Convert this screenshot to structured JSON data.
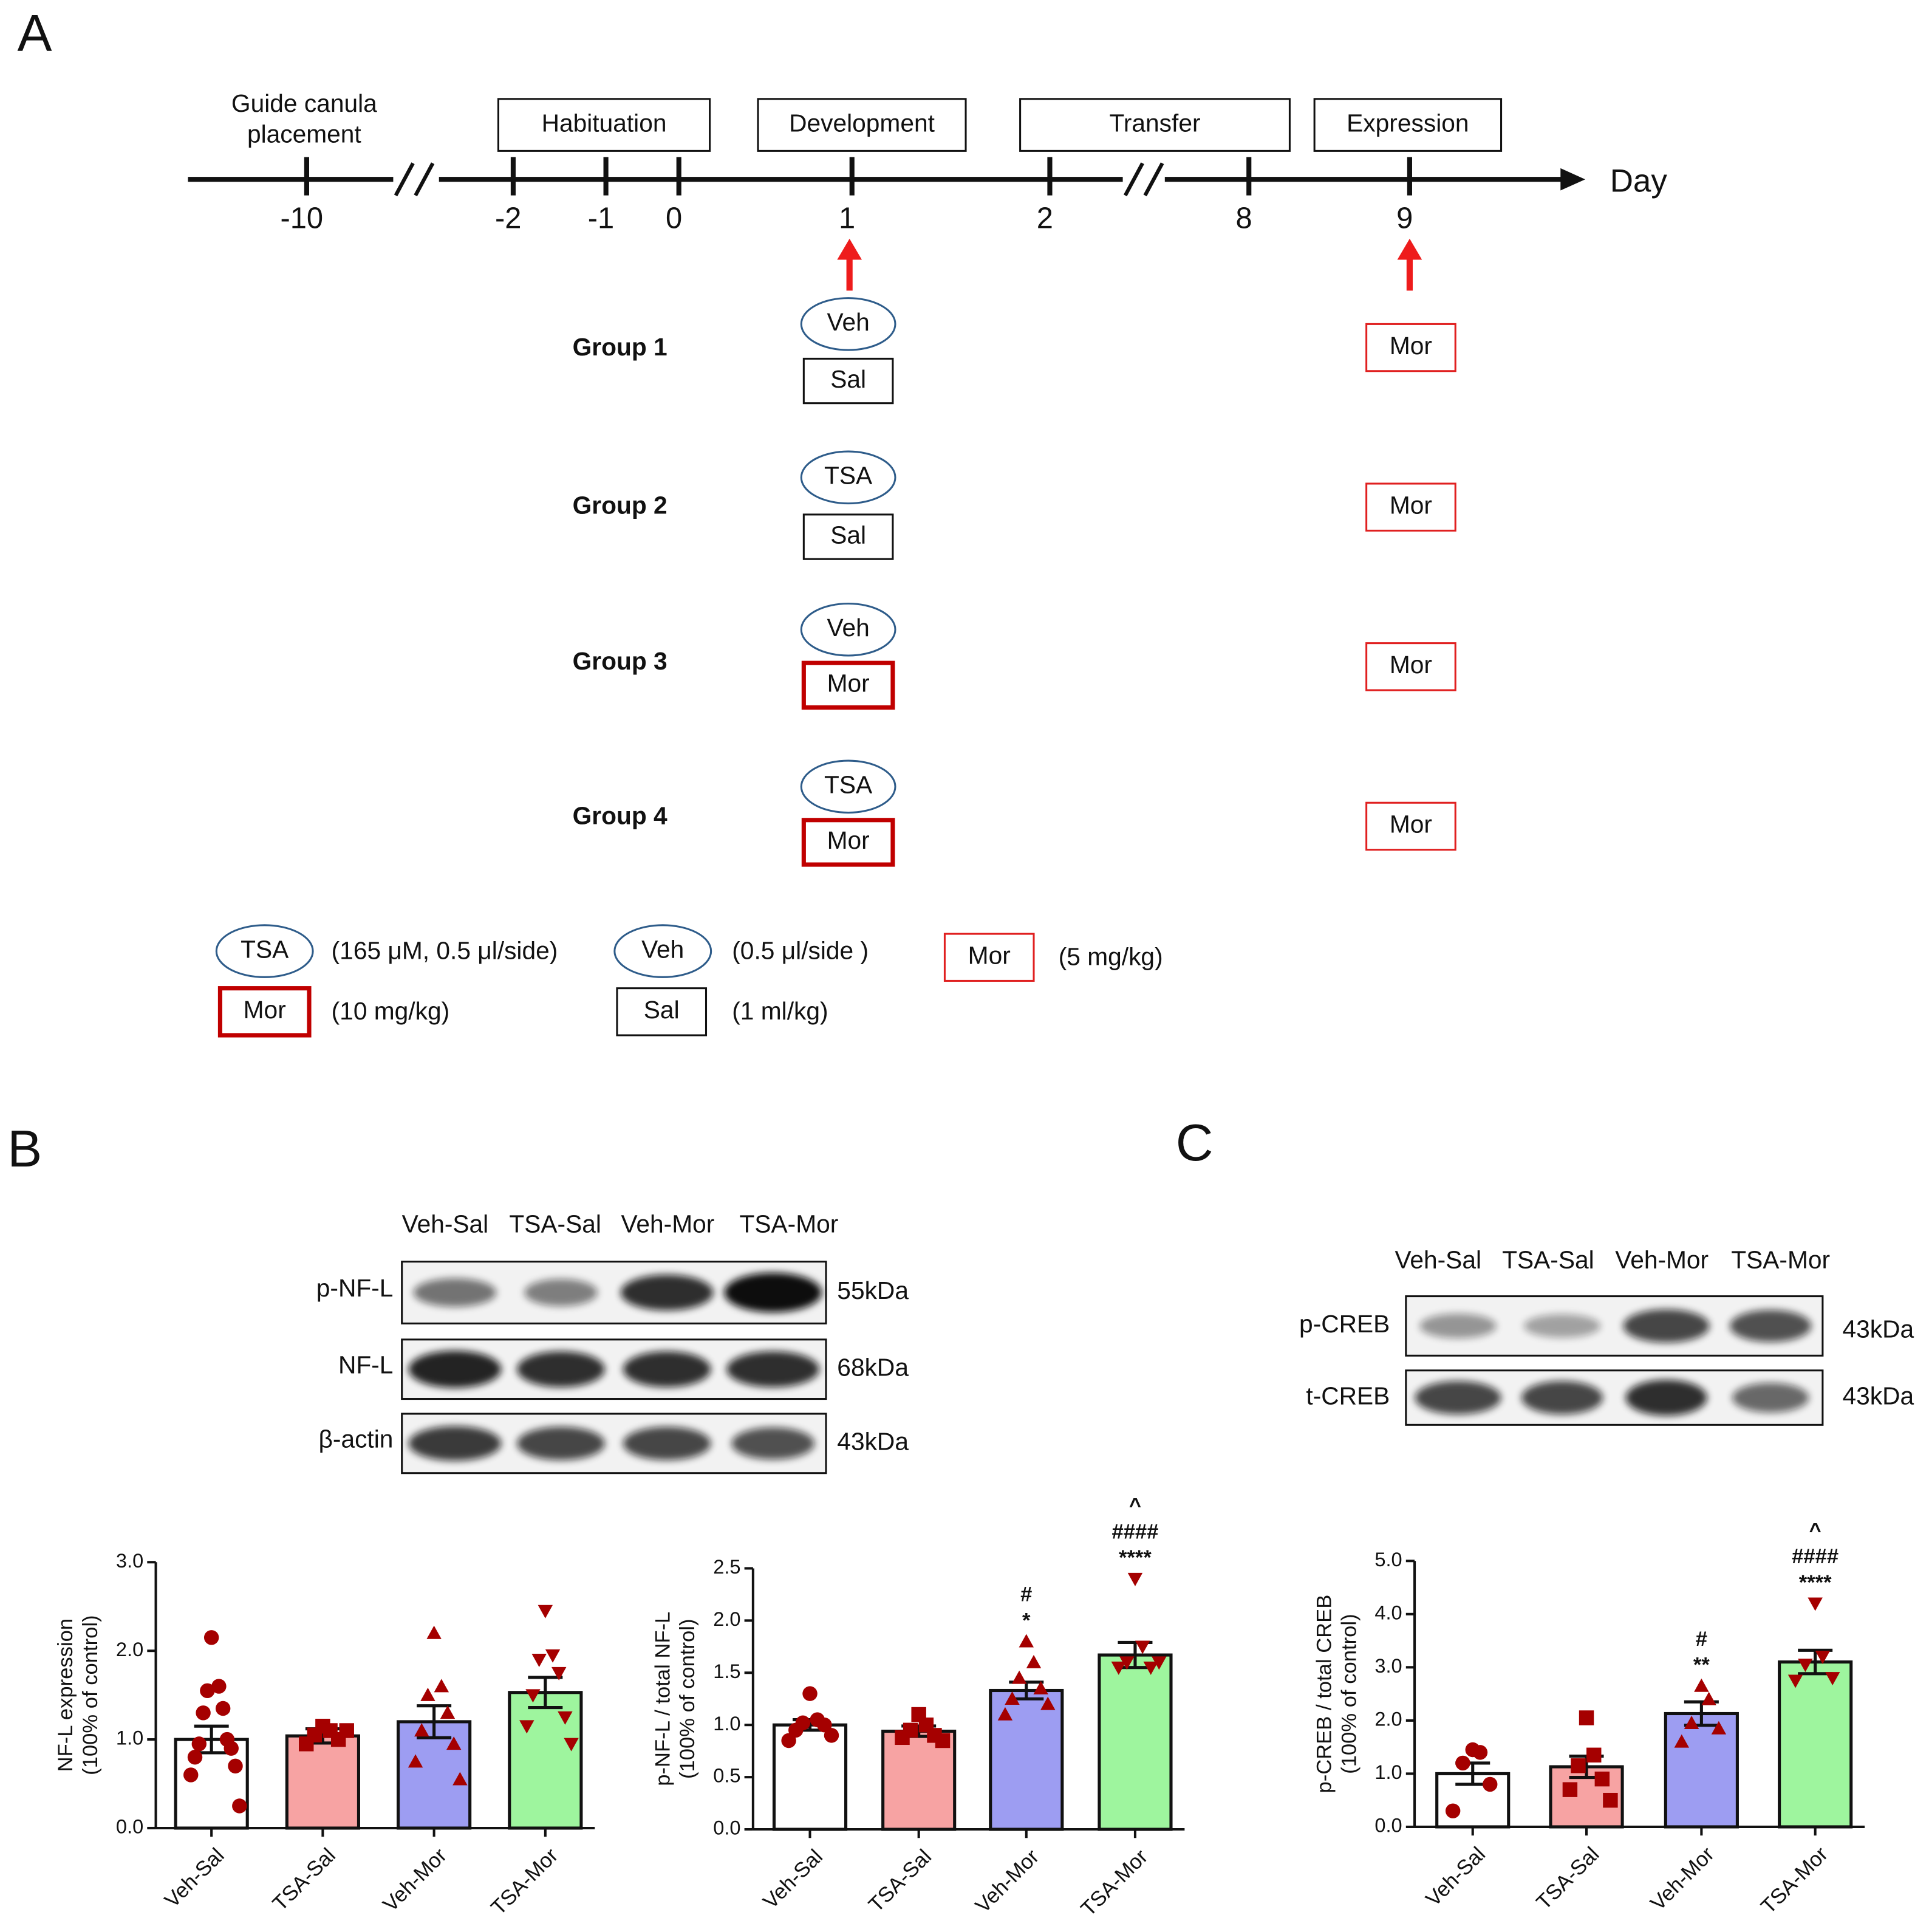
{
  "panels": [
    "A",
    "B",
    "C"
  ],
  "timeline": {
    "guide": [
      "Guide canula",
      "placement"
    ],
    "phases": [
      "Habituation",
      "Development",
      "Transfer",
      "Expression"
    ],
    "days": [
      "-10",
      "-2",
      "-1",
      "0",
      "1",
      "2",
      "8",
      "9"
    ],
    "unit": "Day"
  },
  "groups": [
    {
      "label": "Group 1",
      "pretreatment": "Veh",
      "development": "Sal",
      "expression": "Mor"
    },
    {
      "label": "Group 2",
      "pretreatment": "TSA",
      "development": "Sal",
      "expression": "Mor"
    },
    {
      "label": "Group 3",
      "pretreatment": "Veh",
      "development": "Mor",
      "expression": "Mor"
    },
    {
      "label": "Group 4",
      "pretreatment": "TSA",
      "development": "Mor",
      "expression": "Mor"
    }
  ],
  "legend": [
    {
      "symbol": "TSA",
      "text": "(165 μM, 0.5 μl/side)"
    },
    {
      "symbol": "Veh",
      "text": "(0.5 μl/side )"
    },
    {
      "symbol": "Mor",
      "text": "(5 mg/kg)"
    },
    {
      "symbol": "Mor",
      "text": "(10 mg/kg)"
    },
    {
      "symbol": "Sal",
      "text": "(1 ml/kg)"
    }
  ],
  "blots": [
    {
      "lanes": [
        "Veh-Sal",
        "TSA-Sal",
        "Veh-Mor",
        "TSA-Mor"
      ],
      "rows": [
        {
          "name": "p-NF-L",
          "size": "55kDa"
        },
        {
          "name": "NF-L",
          "size": "68kDa"
        },
        {
          "name": "β-actin",
          "size": "43kDa"
        }
      ]
    },
    {
      "lanes": [
        "Veh-Sal",
        "TSA-Sal",
        "Veh-Mor",
        "TSA-Mor"
      ],
      "rows": [
        {
          "name": "p-CREB",
          "size": "43kDa"
        },
        {
          "name": "t-CREB",
          "size": "43kDa"
        }
      ]
    }
  ],
  "chart_data": [
    {
      "type": "bar",
      "ylabel": [
        "NF-L expression",
        "(100% of control)"
      ],
      "categories": [
        "Veh-Sal",
        "TSA-Sal",
        "Veh-Mor",
        "TSA-Mor"
      ],
      "values": [
        1.0,
        1.04,
        1.2,
        1.53
      ],
      "errors": [
        0.15,
        0.08,
        0.18,
        0.17
      ],
      "points": [
        [
          2.15,
          1.6,
          1.55,
          1.35,
          1.3,
          1.0,
          0.95,
          0.9,
          0.8,
          0.7,
          0.6,
          0.25
        ],
        [
          1.15,
          1.1,
          1.05,
          1.0,
          0.95,
          1.1
        ],
        [
          2.2,
          1.6,
          1.5,
          1.3,
          1.1,
          0.95,
          0.75,
          0.55
        ],
        [
          2.45,
          1.95,
          1.9,
          1.75,
          1.5,
          1.25,
          1.15,
          0.95
        ]
      ],
      "colors": [
        "#ffffff",
        "#f7a3a3",
        "#9d9df2",
        "#9ef59e"
      ],
      "marker_color": "#a50000",
      "markers": [
        "circle",
        "square",
        "triangle",
        "triangle-down"
      ],
      "annotations": [
        null,
        null,
        null,
        null
      ],
      "ylim": [
        0,
        3
      ],
      "yticks": [
        {
          "value": 0,
          "label": "0.0"
        },
        {
          "value": 1,
          "label": "1.0"
        },
        {
          "value": 2,
          "label": "2.0"
        },
        {
          "value": 3,
          "label": "3.0"
        }
      ]
    },
    {
      "type": "bar",
      "ylabel": [
        "p-NF-L / total NF-L",
        "(100% of control)"
      ],
      "categories": [
        "Veh-Sal",
        "TSA-Sal",
        "Veh-Mor",
        "TSA-Mor"
      ],
      "values": [
        1.0,
        0.94,
        1.33,
        1.67
      ],
      "errors": [
        0.05,
        0.05,
        0.08,
        0.12
      ],
      "points": [
        [
          1.3,
          1.05,
          1.02,
          1.0,
          0.95,
          0.9,
          0.85
        ],
        [
          1.1,
          1.0,
          0.95,
          0.9,
          0.88,
          0.85
        ],
        [
          1.8,
          1.6,
          1.45,
          1.35,
          1.25,
          1.2,
          1.1
        ],
        [
          2.4,
          1.75,
          1.6,
          1.55,
          1.55,
          1.6
        ]
      ],
      "colors": [
        "#ffffff",
        "#f7a3a3",
        "#9d9df2",
        "#9ef59e"
      ],
      "marker_color": "#a50000",
      "markers": [
        "circle",
        "square",
        "triangle",
        "triangle-down"
      ],
      "annotations": [
        null,
        null,
        [
          "#",
          "*"
        ],
        [
          "^",
          "####",
          "****"
        ]
      ],
      "ylim": [
        0,
        2.5
      ],
      "yticks": [
        {
          "value": 0,
          "label": "0.0"
        },
        {
          "value": 0.5,
          "label": "0.5"
        },
        {
          "value": 1,
          "label": "1.0"
        },
        {
          "value": 1.5,
          "label": "1.5"
        },
        {
          "value": 2,
          "label": "2.0"
        },
        {
          "value": 2.5,
          "label": "2.5"
        }
      ]
    },
    {
      "type": "bar",
      "ylabel": [
        "p-CREB / total CREB",
        "(100% of control)"
      ],
      "categories": [
        "Veh-Sal",
        "TSA-Sal",
        "Veh-Mor",
        "TSA-Mor"
      ],
      "values": [
        1.0,
        1.13,
        2.13,
        3.1
      ],
      "errors": [
        0.2,
        0.2,
        0.22,
        0.22
      ],
      "points": [
        [
          1.45,
          1.4,
          1.2,
          0.8,
          0.3
        ],
        [
          2.05,
          1.35,
          1.15,
          0.9,
          0.7,
          0.5
        ],
        [
          2.65,
          2.4,
          1.95,
          1.85,
          1.6
        ],
        [
          4.2,
          3.2,
          3.05,
          2.8,
          2.75
        ]
      ],
      "colors": [
        "#ffffff",
        "#f7a3a3",
        "#9d9df2",
        "#9ef59e"
      ],
      "marker_color": "#a50000",
      "markers": [
        "circle",
        "square",
        "triangle",
        "triangle-down"
      ],
      "annotations": [
        null,
        null,
        [
          "#",
          "**"
        ],
        [
          "^",
          "####",
          "****"
        ]
      ],
      "ylim": [
        0,
        5
      ],
      "yticks": [
        {
          "value": 0,
          "label": "0.0"
        },
        {
          "value": 1,
          "label": "1.0"
        },
        {
          "value": 2,
          "label": "2.0"
        },
        {
          "value": 3,
          "label": "3.0"
        },
        {
          "value": 4,
          "label": "4.0"
        },
        {
          "value": 5,
          "label": "5.0"
        }
      ]
    }
  ]
}
